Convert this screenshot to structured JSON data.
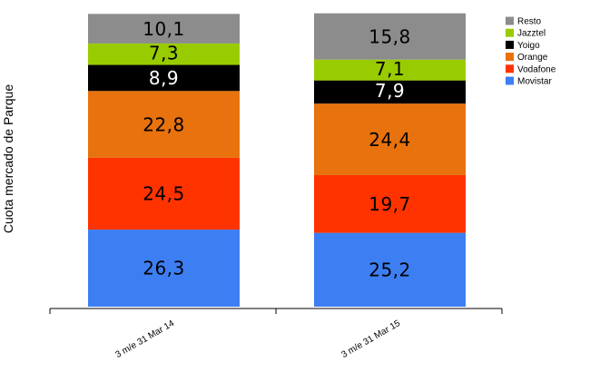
{
  "chart_data": {
    "type": "bar",
    "stacked": true,
    "ylabel": "Cuota mercado de Parque",
    "xlabel": "",
    "title": "",
    "categories": [
      "3 m/e 31 Mar 14",
      "3 m/e 31 Mar 15"
    ],
    "ylim": [
      0,
      100
    ],
    "grid": false,
    "legend_position": "top-right",
    "series": [
      {
        "name": "Movistar",
        "color": "#3d7ff3",
        "values": [
          26.3,
          25.2
        ],
        "labels": [
          "26,3",
          "25,2"
        ]
      },
      {
        "name": "Vodafone",
        "color": "#ff3300",
        "values": [
          24.5,
          19.7
        ],
        "labels": [
          "24,5",
          "19,7"
        ]
      },
      {
        "name": "Orange",
        "color": "#e8720d",
        "values": [
          22.8,
          24.4
        ],
        "labels": [
          "22,8",
          "24,4"
        ]
      },
      {
        "name": "Yoigo",
        "color": "#000000",
        "values": [
          8.9,
          7.9
        ],
        "labels": [
          "8,9",
          "7,9"
        ]
      },
      {
        "name": "Jazztel",
        "color": "#99cc00",
        "values": [
          7.3,
          7.1
        ],
        "labels": [
          "7,3",
          "7,1"
        ]
      },
      {
        "name": "Resto",
        "color": "#8c8c8c",
        "values": [
          10.1,
          15.8
        ],
        "labels": [
          "10,1",
          "15,8"
        ]
      }
    ],
    "legend_order": [
      "Resto",
      "Jazztel",
      "Yoigo",
      "Orange",
      "Vodafone",
      "Movistar"
    ],
    "axis_color": "#000000"
  }
}
